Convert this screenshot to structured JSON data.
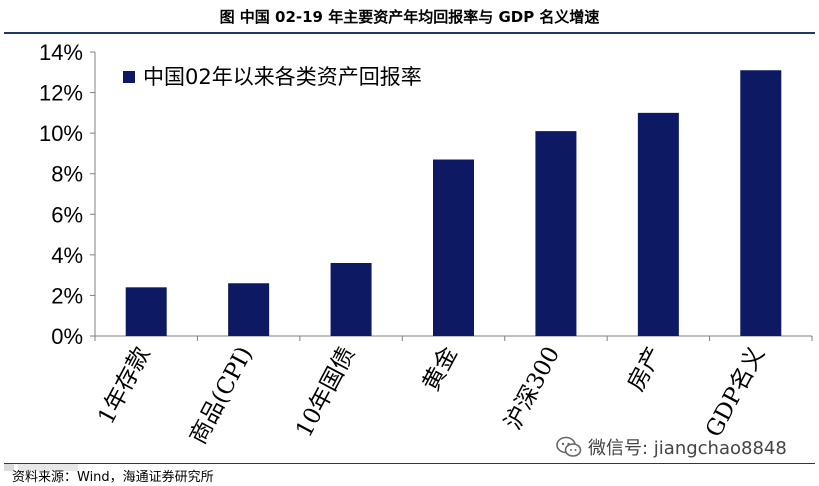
{
  "figure": {
    "title": "图 中国 02-19 年主要资产年均回报率与 GDP 名义增速",
    "source": "资料来源：Wind，海通证券研究所",
    "watermark": "微信号: jiangchao8848"
  },
  "colors": {
    "bar": "#0d1a63",
    "axis": "#808080",
    "rule": "#1f3864"
  },
  "chart_data": {
    "type": "bar",
    "categories": [
      "1年存款",
      "商品(CPI)",
      "10年国债",
      "黄金",
      "沪深300",
      "房产",
      "GDP名义"
    ],
    "series": [
      {
        "name": "中国02年以来各类资产回报率",
        "values": [
          2.4,
          2.6,
          3.6,
          8.7,
          10.1,
          11.0,
          13.1
        ]
      }
    ],
    "ylim": [
      0,
      14
    ],
    "y_ticks": [
      0,
      2,
      4,
      6,
      8,
      10,
      12,
      14
    ],
    "y_tick_labels": [
      "0%",
      "2%",
      "4%",
      "6%",
      "8%",
      "10%",
      "12%",
      "14%"
    ],
    "xlabel": "",
    "ylabel": "",
    "legend_position": "top-left",
    "grid": false
  }
}
